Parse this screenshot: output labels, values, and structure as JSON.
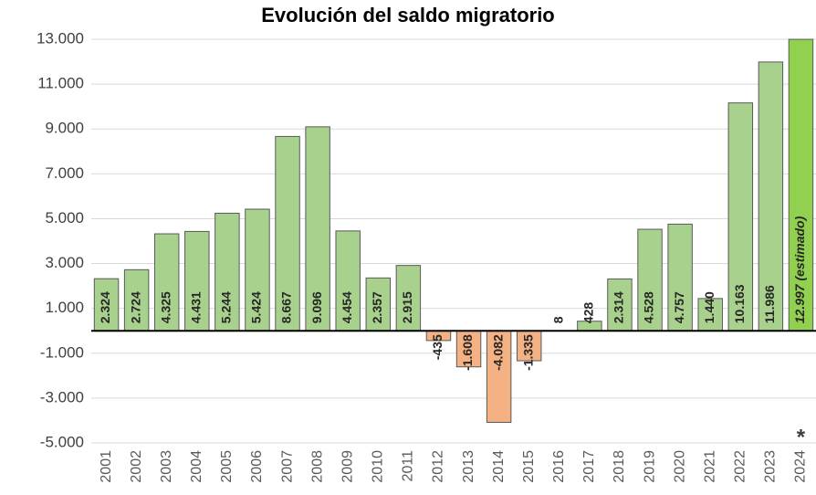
{
  "chart_data": {
    "type": "bar",
    "title": "Evolución del saldo migratorio",
    "categories": [
      "2001",
      "2002",
      "2003",
      "2004",
      "2005",
      "2006",
      "2007",
      "2008",
      "2009",
      "2010",
      "2011",
      "2012",
      "2013",
      "2014",
      "2015",
      "2016",
      "2017",
      "2018",
      "2019",
      "2020",
      "2021",
      "2022",
      "2023",
      "2024"
    ],
    "values": [
      2324,
      2724,
      4325,
      4431,
      5244,
      5424,
      8667,
      9096,
      4454,
      2357,
      2915,
      -435,
      -1608,
      -4082,
      -1335,
      8,
      428,
      2314,
      4528,
      4757,
      1440,
      10163,
      11986,
      12997
    ],
    "value_labels": [
      "2.324",
      "2.724",
      "4.325",
      "4.431",
      "5.244",
      "5.424",
      "8.667",
      "9.096",
      "4.454",
      "2.357",
      "2.915",
      "-435",
      "-1.608",
      "-4.082",
      "-1.335",
      "8",
      "428",
      "2.314",
      "4.528",
      "4.757",
      "1.440",
      "10.163",
      "11.986",
      "12.997 (estimado)"
    ],
    "colors": [
      "#a9d18e",
      "#a9d18e",
      "#a9d18e",
      "#a9d18e",
      "#a9d18e",
      "#a9d18e",
      "#a9d18e",
      "#a9d18e",
      "#a9d18e",
      "#a9d18e",
      "#a9d18e",
      "#f4b183",
      "#f4b183",
      "#f4b183",
      "#f4b183",
      "#a9d18e",
      "#a9d18e",
      "#a9d18e",
      "#a9d18e",
      "#a9d18e",
      "#a9d18e",
      "#a9d18e",
      "#a9d18e",
      "#92d050"
    ],
    "annotation": "*",
    "ylim": [
      -5000,
      13000
    ],
    "yticks": [
      {
        "value": -5000,
        "label": "-5.000"
      },
      {
        "value": -3000,
        "label": "-3.000"
      },
      {
        "value": -1000,
        "label": "-1.000"
      },
      {
        "value": 1000,
        "label": "1.000"
      },
      {
        "value": 3000,
        "label": "3.000"
      },
      {
        "value": 5000,
        "label": "5.000"
      },
      {
        "value": 7000,
        "label": "7.000"
      },
      {
        "value": 9000,
        "label": "9.000"
      },
      {
        "value": 11000,
        "label": "11.000"
      },
      {
        "value": 13000,
        "label": "13.000"
      }
    ],
    "grid": true
  }
}
